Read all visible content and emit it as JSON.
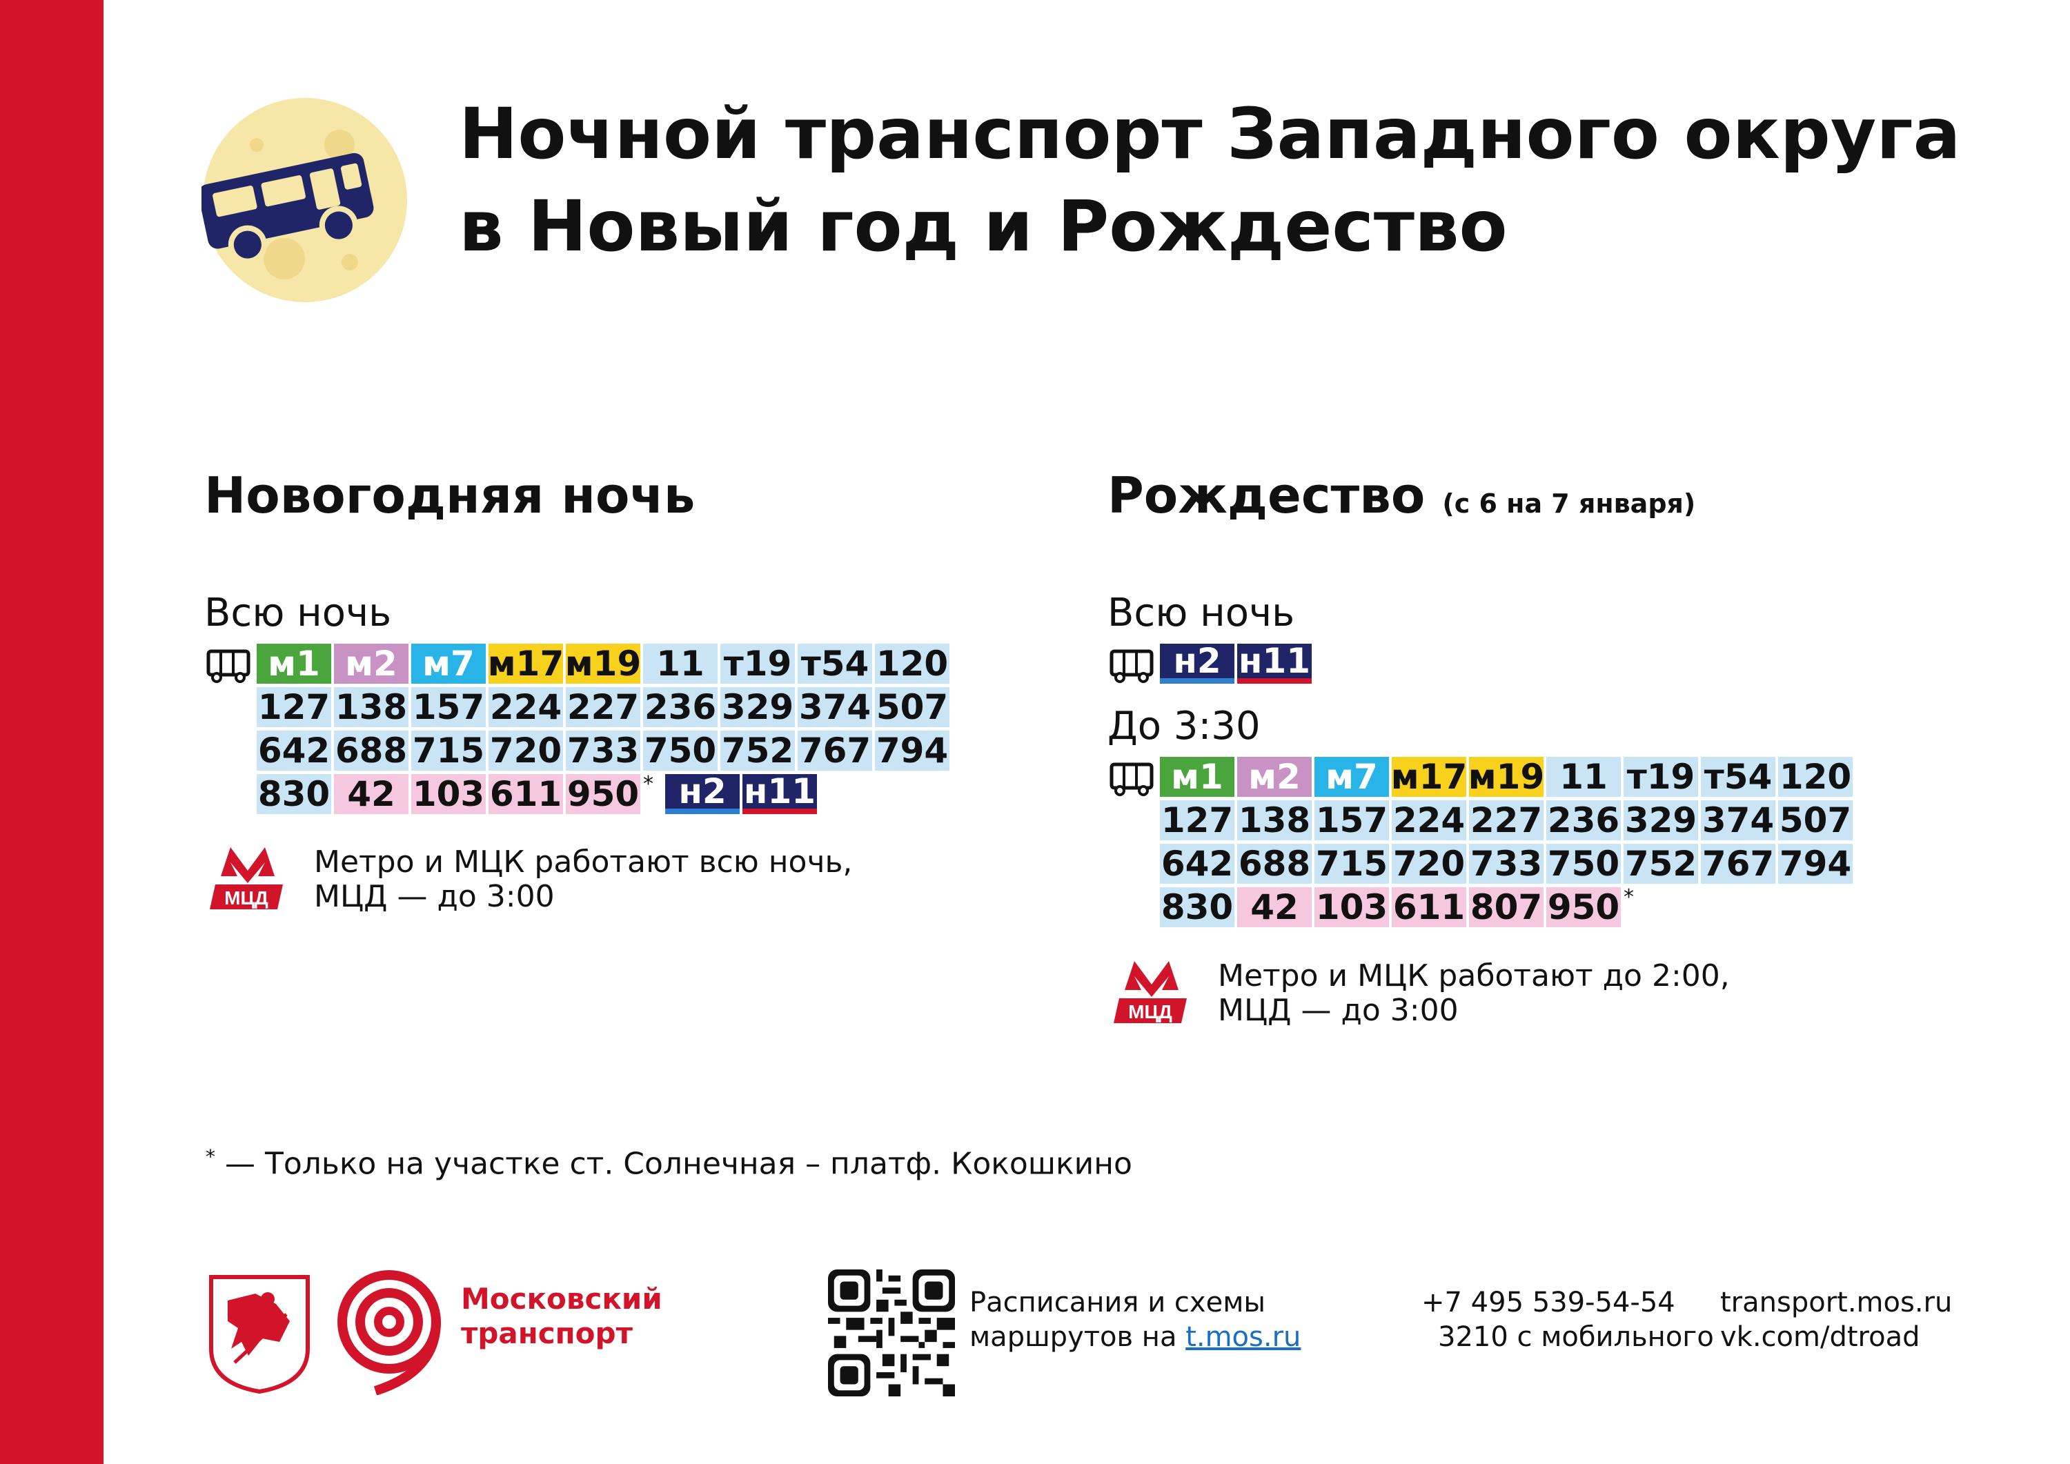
{
  "title": {
    "line1": "Ночной транспорт Западного округа",
    "line2": "в Новый год и Рождество"
  },
  "new_year": {
    "heading": "Новогодняя ночь",
    "all_night_label": "Всю ночь",
    "rows": [
      [
        {
          "t": "м1",
          "c": "green"
        },
        {
          "t": "м2",
          "c": "purple"
        },
        {
          "t": "м7",
          "c": "cyan"
        },
        {
          "t": "м17",
          "c": "yellow"
        },
        {
          "t": "м19",
          "c": "yellow"
        },
        {
          "t": "11",
          "c": "blue"
        },
        {
          "t": "т19",
          "c": "blue"
        },
        {
          "t": "т54",
          "c": "blue"
        },
        {
          "t": "120",
          "c": "blue"
        }
      ],
      [
        {
          "t": "127",
          "c": "blue"
        },
        {
          "t": "138",
          "c": "blue"
        },
        {
          "t": "157",
          "c": "blue"
        },
        {
          "t": "224",
          "c": "blue"
        },
        {
          "t": "227",
          "c": "blue"
        },
        {
          "t": "236",
          "c": "blue"
        },
        {
          "t": "329",
          "c": "blue"
        },
        {
          "t": "374",
          "c": "blue"
        },
        {
          "t": "507",
          "c": "blue"
        }
      ],
      [
        {
          "t": "642",
          "c": "blue"
        },
        {
          "t": "688",
          "c": "blue"
        },
        {
          "t": "715",
          "c": "blue"
        },
        {
          "t": "720",
          "c": "blue"
        },
        {
          "t": "733",
          "c": "blue"
        },
        {
          "t": "750",
          "c": "blue"
        },
        {
          "t": "752",
          "c": "blue"
        },
        {
          "t": "767",
          "c": "blue"
        },
        {
          "t": "794",
          "c": "blue"
        }
      ],
      [
        {
          "t": "830",
          "c": "blue"
        },
        {
          "t": "42",
          "c": "pink"
        },
        {
          "t": "103",
          "c": "pink"
        },
        {
          "t": "611",
          "c": "pink"
        },
        {
          "t": "950",
          "c": "pink"
        },
        {
          "t": "*",
          "c": "star"
        },
        {
          "t": "н2",
          "c": "navy n2"
        },
        {
          "t": "н11",
          "c": "navy"
        }
      ]
    ],
    "metro_note_line1": "Метро и МЦК работают всю ночь,",
    "metro_note_line2": "МЦД — до 3:00"
  },
  "christmas": {
    "heading": "Рождество",
    "heading_sub": "(с 6 на 7 января)",
    "all_night_label": "Всю ночь",
    "all_night_rows": [
      [
        {
          "t": "н2",
          "c": "navy n2"
        },
        {
          "t": "н11",
          "c": "navy"
        }
      ]
    ],
    "until_label": "До 3:30",
    "rows": [
      [
        {
          "t": "м1",
          "c": "green"
        },
        {
          "t": "м2",
          "c": "purple"
        },
        {
          "t": "м7",
          "c": "cyan"
        },
        {
          "t": "м17",
          "c": "yellow"
        },
        {
          "t": "м19",
          "c": "yellow"
        },
        {
          "t": "11",
          "c": "blue"
        },
        {
          "t": "т19",
          "c": "blue"
        },
        {
          "t": "т54",
          "c": "blue"
        },
        {
          "t": "120",
          "c": "blue"
        }
      ],
      [
        {
          "t": "127",
          "c": "blue"
        },
        {
          "t": "138",
          "c": "blue"
        },
        {
          "t": "157",
          "c": "blue"
        },
        {
          "t": "224",
          "c": "blue"
        },
        {
          "t": "227",
          "c": "blue"
        },
        {
          "t": "236",
          "c": "blue"
        },
        {
          "t": "329",
          "c": "blue"
        },
        {
          "t": "374",
          "c": "blue"
        },
        {
          "t": "507",
          "c": "blue"
        }
      ],
      [
        {
          "t": "642",
          "c": "blue"
        },
        {
          "t": "688",
          "c": "blue"
        },
        {
          "t": "715",
          "c": "blue"
        },
        {
          "t": "720",
          "c": "blue"
        },
        {
          "t": "733",
          "c": "blue"
        },
        {
          "t": "750",
          "c": "blue"
        },
        {
          "t": "752",
          "c": "blue"
        },
        {
          "t": "767",
          "c": "blue"
        },
        {
          "t": "794",
          "c": "blue"
        }
      ],
      [
        {
          "t": "830",
          "c": "blue"
        },
        {
          "t": "42",
          "c": "pink"
        },
        {
          "t": "103",
          "c": "pink"
        },
        {
          "t": "611",
          "c": "pink"
        },
        {
          "t": "807",
          "c": "pink"
        },
        {
          "t": "950",
          "c": "pink"
        },
        {
          "t": "*",
          "c": "star"
        }
      ]
    ],
    "metro_note_line1": "Метро и МЦК работают до 2:00,",
    "metro_note_line2": "МЦД — до 3:00"
  },
  "metro_logo_text": "МЦД",
  "footnote": {
    "mark": "*",
    "text": "— Только на участке ст. Солнечная – платф. Кокошкино"
  },
  "footer": {
    "brand_line1": "Московский",
    "brand_line2": "транспорт",
    "schedule_line1": "Расписания и схемы",
    "schedule_line2_prefix": "маршрутов на ",
    "schedule_link": "t.mos.ru",
    "phone": "+7 495 539-54-54",
    "mobile": "3210 с мобильного",
    "site": "transport.mos.ru",
    "vk": "vk.com/dtroad"
  },
  "colors": {
    "accent_red": "#d2142a",
    "navy": "#1f2566",
    "light_blue": "#c9e4f5",
    "pink": "#f6c8e0",
    "green": "#4aa53c",
    "purple": "#c992c4",
    "cyan": "#29b4e8",
    "yellow": "#f8d11c"
  },
  "icons": [
    "moon-bus-icon",
    "bus-icon",
    "metro-logo-icon",
    "moscow-coat-of-arms-icon",
    "moscow-transport-logo-icon",
    "qr-code-icon"
  ]
}
